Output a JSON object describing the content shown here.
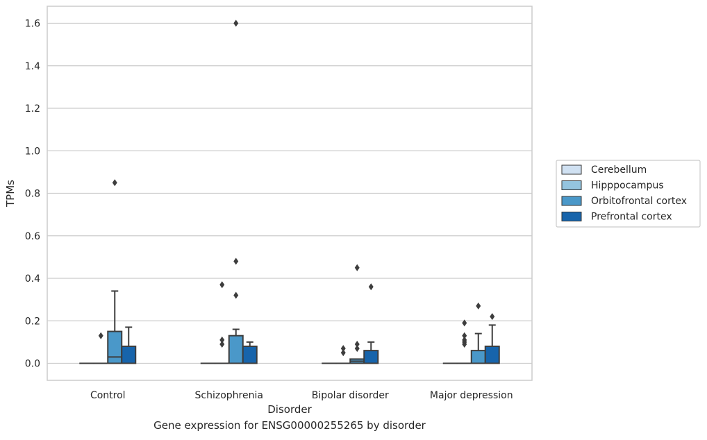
{
  "chart_data": {
    "type": "box",
    "title": "",
    "xlabel": "Disorder",
    "ylabel": "TPMs",
    "ylim": [
      -0.08,
      1.68
    ],
    "yticks": [
      0.0,
      0.2,
      0.4,
      0.6,
      0.8,
      1.0,
      1.2,
      1.4,
      1.6
    ],
    "ytick_labels": [
      "0.0",
      "0.2",
      "0.4",
      "0.6",
      "0.8",
      "1.0",
      "1.2",
      "1.4",
      "1.6"
    ],
    "categories": [
      "Control",
      "Schizophrenia",
      "Bipolar disorder",
      "Major depression"
    ],
    "grid": "horizontal",
    "legend_placement": "right-outside",
    "series": [
      {
        "name": "Cerebellum",
        "color": "#d0e1f2",
        "boxes": [
          {
            "q1": 0,
            "median": 0,
            "q3": 0,
            "whisker_low": 0,
            "whisker_high": 0,
            "outliers": []
          },
          {
            "q1": 0,
            "median": 0,
            "q3": 0,
            "whisker_low": 0,
            "whisker_high": 0,
            "outliers": []
          },
          {
            "q1": 0,
            "median": 0,
            "q3": 0,
            "whisker_low": 0,
            "whisker_high": 0,
            "outliers": []
          },
          {
            "q1": 0,
            "median": 0,
            "q3": 0,
            "whisker_low": 0,
            "whisker_high": 0,
            "outliers": []
          }
        ]
      },
      {
        "name": "Hipppocampus",
        "color": "#94c4df",
        "boxes": [
          {
            "q1": 0,
            "median": 0,
            "q3": 0,
            "whisker_low": 0,
            "whisker_high": 0,
            "outliers": [
              0.13
            ]
          },
          {
            "q1": 0,
            "median": 0,
            "q3": 0,
            "whisker_low": 0,
            "whisker_high": 0,
            "outliers": [
              0.09,
              0.11,
              0.37
            ]
          },
          {
            "q1": 0,
            "median": 0,
            "q3": 0,
            "whisker_low": 0,
            "whisker_high": 0,
            "outliers": [
              0.05,
              0.07
            ]
          },
          {
            "q1": 0,
            "median": 0,
            "q3": 0,
            "whisker_low": 0,
            "whisker_high": 0,
            "outliers": [
              0.09,
              0.1,
              0.11,
              0.13,
              0.19
            ]
          }
        ]
      },
      {
        "name": "Orbitofrontal cortex",
        "color": "#4a98c9",
        "boxes": [
          {
            "q1": 0,
            "median": 0.03,
            "q3": 0.15,
            "whisker_low": 0,
            "whisker_high": 0.34,
            "outliers": [
              0.85
            ]
          },
          {
            "q1": 0,
            "median": 0,
            "q3": 0.13,
            "whisker_low": 0,
            "whisker_high": 0.16,
            "outliers": [
              0.32,
              0.48,
              1.6
            ]
          },
          {
            "q1": 0,
            "median": 0.01,
            "q3": 0.02,
            "whisker_low": 0,
            "whisker_high": 0.02,
            "outliers": [
              0.07,
              0.09,
              0.45
            ]
          },
          {
            "q1": 0,
            "median": 0,
            "q3": 0.06,
            "whisker_low": 0,
            "whisker_high": 0.14,
            "outliers": [
              0.27
            ]
          }
        ]
      },
      {
        "name": "Prefrontal cortex",
        "color": "#1764ab",
        "boxes": [
          {
            "q1": 0,
            "median": 0,
            "q3": 0.08,
            "whisker_low": 0,
            "whisker_high": 0.17,
            "outliers": []
          },
          {
            "q1": 0,
            "median": 0,
            "q3": 0.08,
            "whisker_low": 0,
            "whisker_high": 0.1,
            "outliers": []
          },
          {
            "q1": 0,
            "median": 0,
            "q3": 0.06,
            "whisker_low": 0,
            "whisker_high": 0.1,
            "outliers": [
              0.36
            ]
          },
          {
            "q1": 0,
            "median": 0,
            "q3": 0.08,
            "whisker_low": 0,
            "whisker_high": 0.18,
            "outliers": [
              0.22
            ]
          }
        ]
      }
    ]
  },
  "caption": "Gene expression for ENSG00000255265 by disorder"
}
